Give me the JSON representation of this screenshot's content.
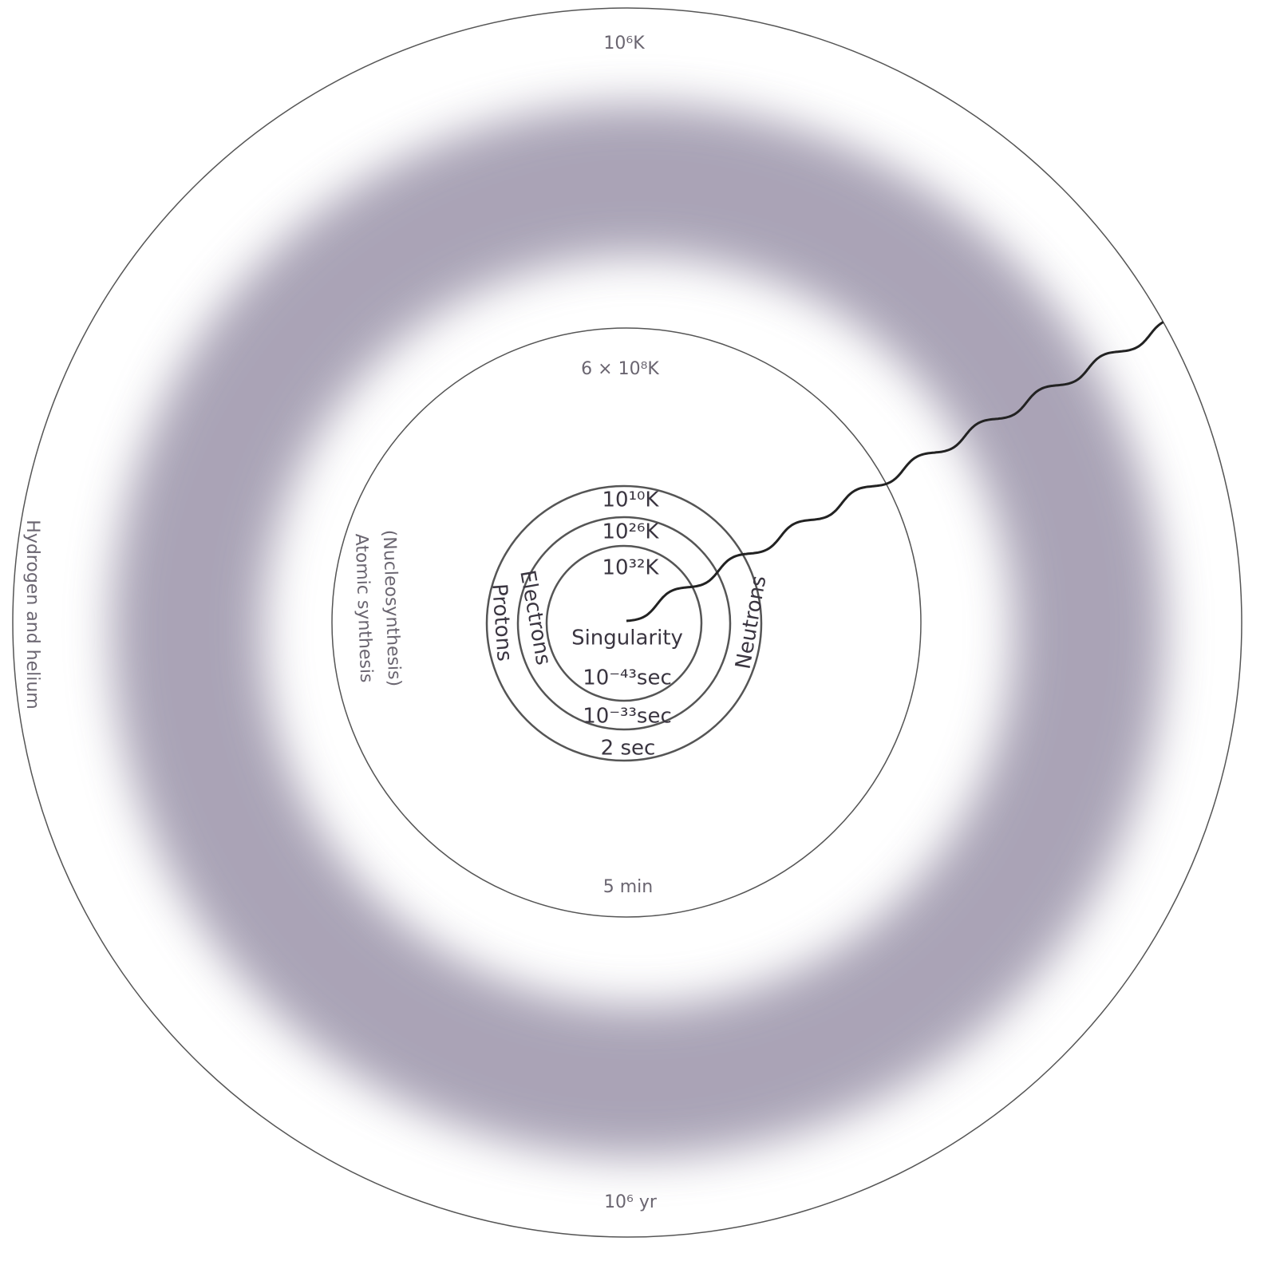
{
  "outer_ring": {
    "temperature": "10⁶K",
    "time": "10⁶ yr",
    "label": "Hydrogen and helium"
  },
  "nucleosynthesis_ring": {
    "temperature": "6 × 10⁸K",
    "time": "5 min",
    "label_1": "(Nucleosynthesis)",
    "label_2": "Atomic synthesis"
  },
  "particle_ring": {
    "temperature": "10¹⁰K",
    "time": "2 sec",
    "label_left": "Protons",
    "label_right": "Neutrons"
  },
  "electron_ring": {
    "temperature": "10²⁶K",
    "time": "10⁻³³sec",
    "label": "Electrons"
  },
  "core_ring": {
    "temperature": "10³²K",
    "time": "10⁻⁴³sec",
    "label": "Singularity"
  }
}
